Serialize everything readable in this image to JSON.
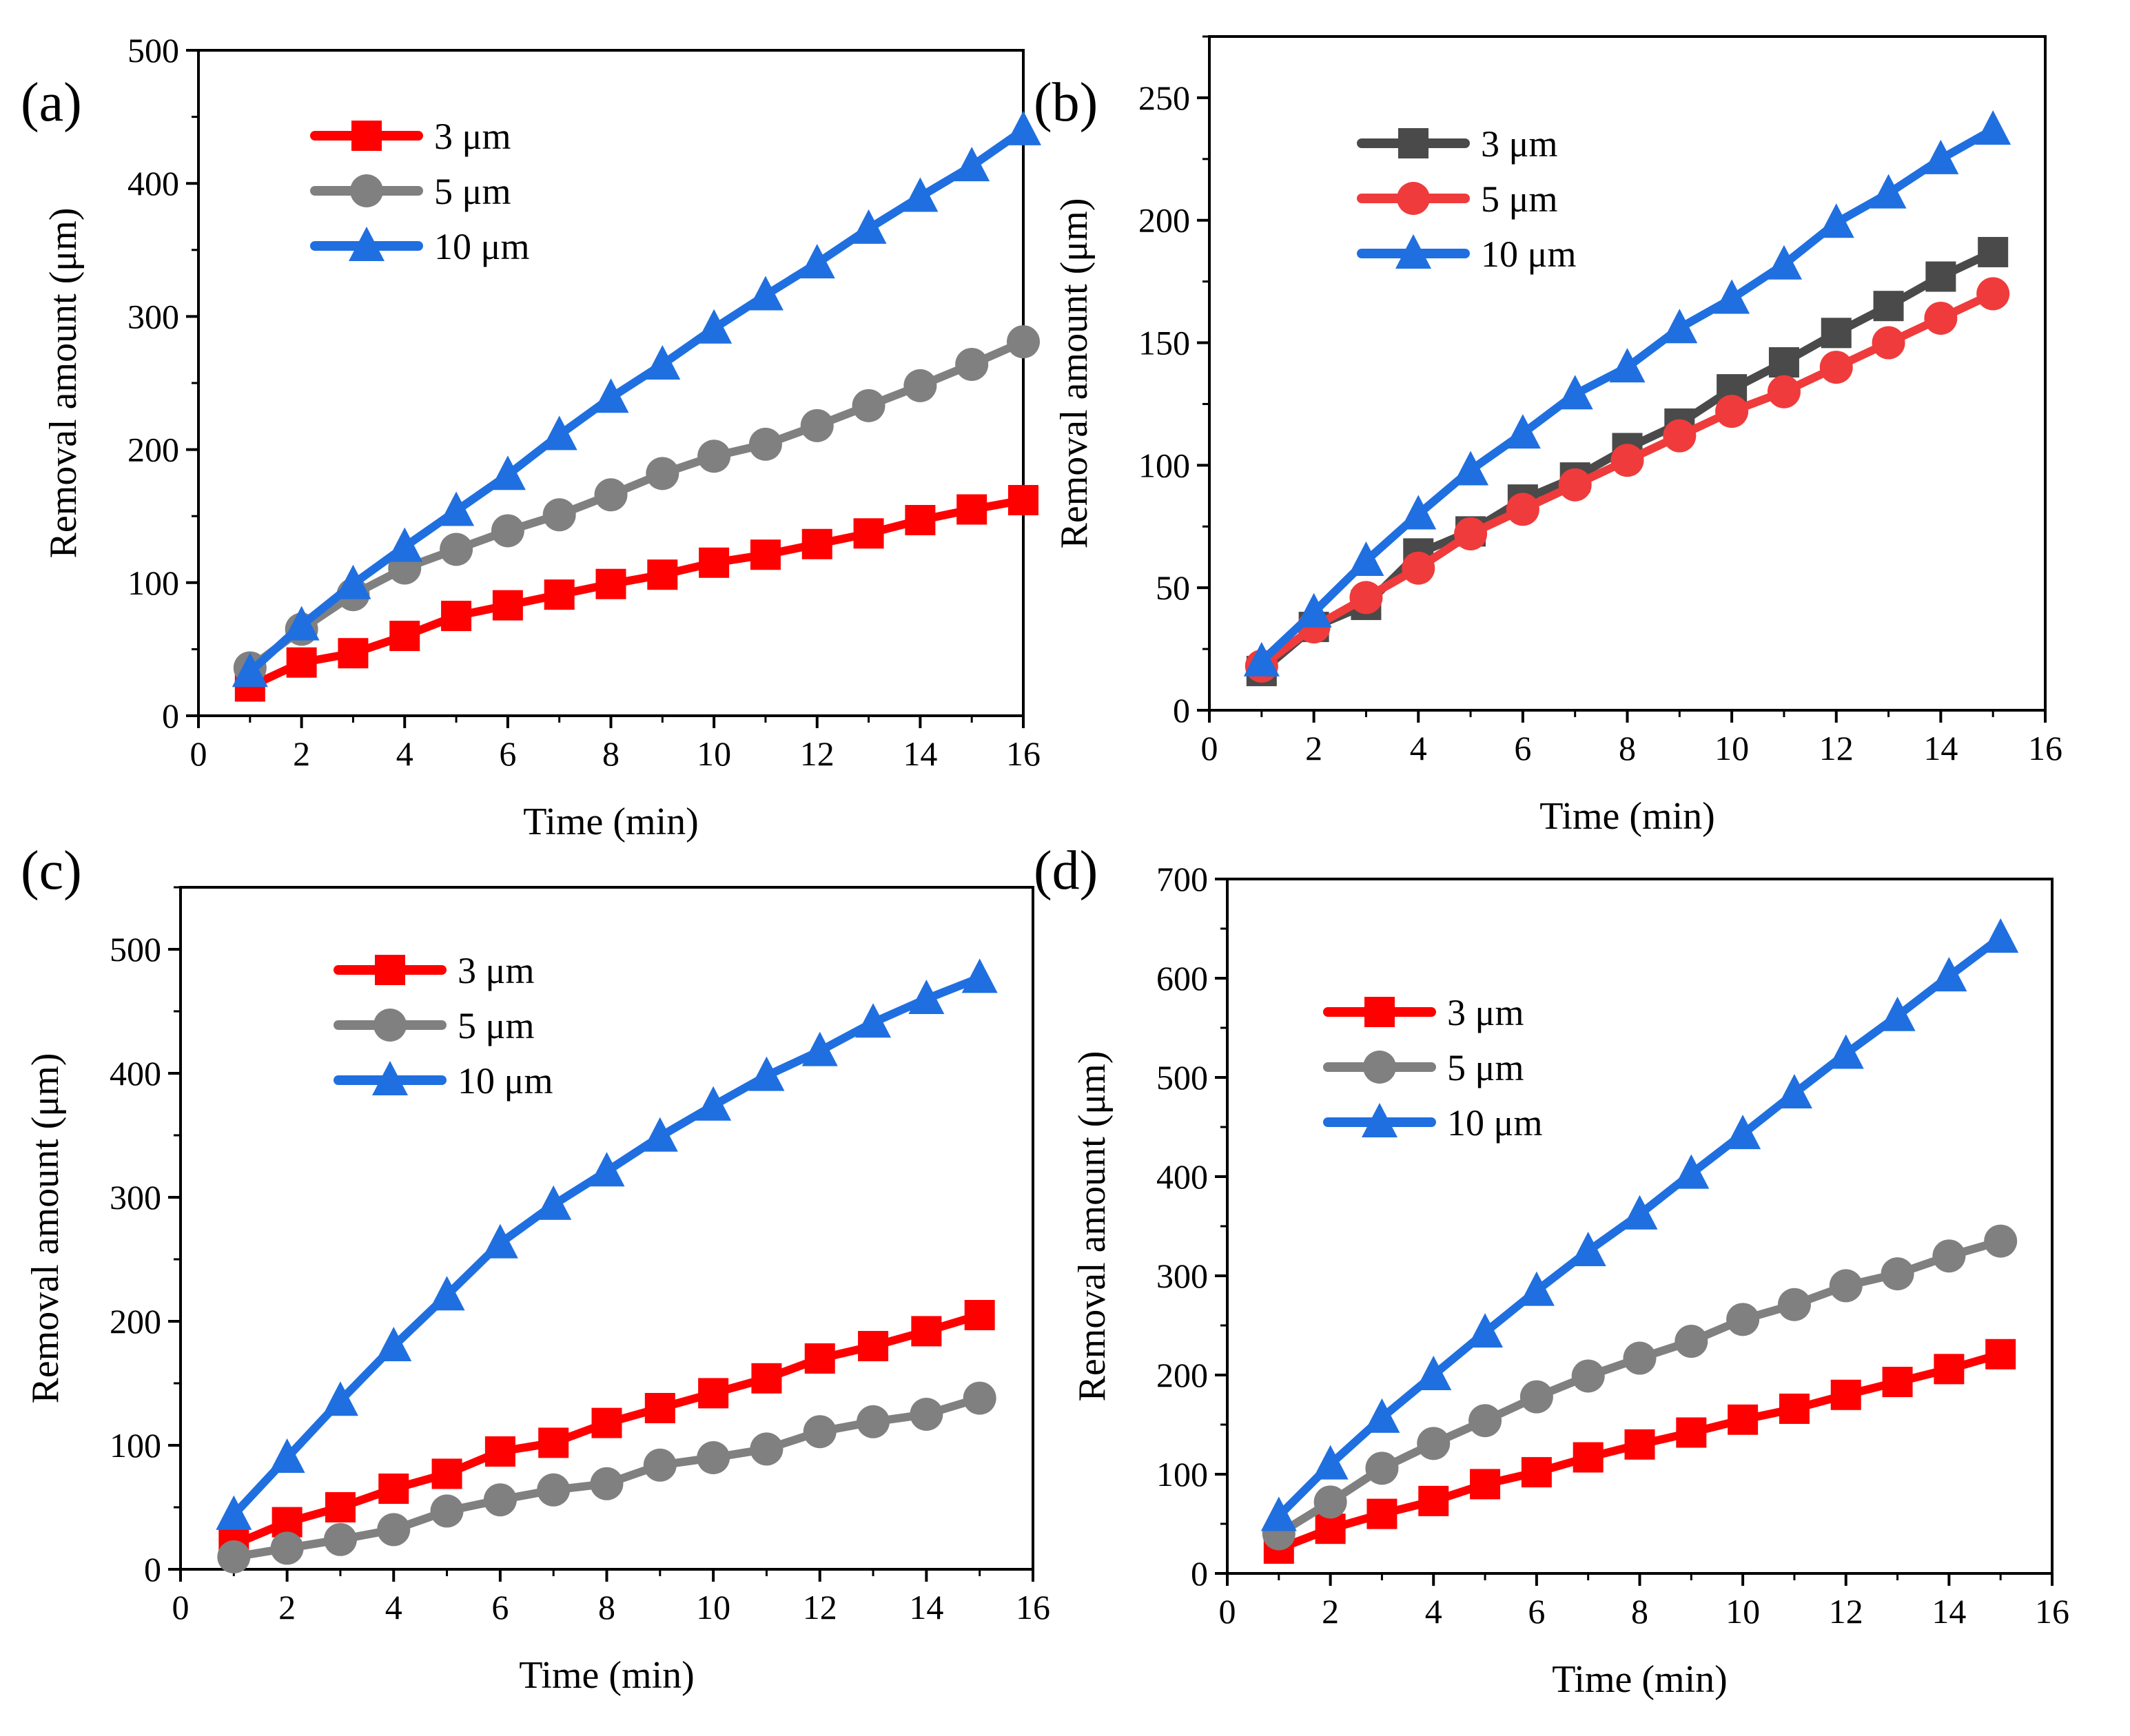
{
  "chart_data": [
    {
      "type": "line",
      "panel_label": "(a)",
      "xlabel": "Time (min)",
      "ylabel": "Removal amount (μm)",
      "xlim": [
        0,
        16
      ],
      "ylim": [
        0,
        500
      ],
      "xticks": [
        0,
        2,
        4,
        6,
        8,
        10,
        12,
        14,
        16
      ],
      "yticks": [
        0,
        100,
        200,
        300,
        400,
        500
      ],
      "legend_position": "top-left",
      "x": [
        1,
        2,
        3,
        4,
        5,
        6,
        7,
        8,
        9,
        10,
        11,
        12,
        13,
        14,
        15,
        16
      ],
      "series": [
        {
          "name": "3 μm",
          "color": "#ff0000",
          "marker": "square",
          "values": [
            22,
            40,
            47,
            60,
            75,
            83,
            91,
            99,
            106,
            115,
            121,
            129,
            137,
            147,
            155,
            162
          ]
        },
        {
          "name": "5 μm",
          "color": "#808080",
          "marker": "circle",
          "values": [
            36,
            65,
            91,
            111,
            125,
            139,
            151,
            166,
            182,
            195,
            204,
            218,
            233,
            248,
            264,
            281
          ]
        },
        {
          "name": "10 μm",
          "color": "#1f6fe0",
          "marker": "triangle",
          "values": [
            33,
            68,
            99,
            127,
            154,
            181,
            211,
            239,
            264,
            291,
            316,
            340,
            366,
            390,
            413,
            440
          ]
        }
      ]
    },
    {
      "type": "line",
      "panel_label": "(b)",
      "xlabel": "Time (min)",
      "ylabel": "Removal amount (μm)",
      "xlim": [
        0,
        16
      ],
      "ylim": [
        0,
        275
      ],
      "xticks": [
        0,
        2,
        4,
        6,
        8,
        10,
        12,
        14,
        16
      ],
      "yticks": [
        0,
        50,
        100,
        150,
        200,
        250
      ],
      "legend_position": "top-left",
      "x": [
        1,
        2,
        3,
        4,
        5,
        6,
        7,
        8,
        9,
        10,
        11,
        12,
        13,
        14,
        15
      ],
      "series": [
        {
          "name": "3 μm",
          "color": "#4a4a4a",
          "marker": "square",
          "values": [
            16,
            34,
            43,
            64,
            73,
            86,
            95,
            107,
            117,
            131,
            142,
            154,
            165,
            177,
            187
          ]
        },
        {
          "name": "5 μm",
          "color": "#ef3b3b",
          "marker": "circle",
          "values": [
            18,
            34,
            46,
            58,
            72,
            82,
            92,
            102,
            112,
            122,
            130,
            140,
            150,
            160,
            170
          ]
        },
        {
          "name": "10 μm",
          "color": "#1f6fe0",
          "marker": "triangle",
          "values": [
            20,
            40,
            61,
            80,
            98,
            113,
            129,
            140,
            156,
            168,
            182,
            199,
            211,
            225,
            237
          ]
        }
      ]
    },
    {
      "type": "line",
      "panel_label": "(c)",
      "xlabel": "Time (min)",
      "ylabel": "Removal amount (μm)",
      "xlim": [
        0,
        16
      ],
      "ylim": [
        0,
        550
      ],
      "xticks": [
        0,
        2,
        4,
        6,
        8,
        10,
        12,
        14,
        16
      ],
      "yticks": [
        0,
        100,
        200,
        300,
        400,
        500
      ],
      "legend_position": "top-left",
      "x": [
        1,
        2,
        3,
        4,
        5,
        6,
        7,
        8,
        9,
        10,
        11,
        12,
        13,
        14,
        15
      ],
      "series": [
        {
          "name": "3 μm",
          "color": "#ff0000",
          "marker": "square",
          "values": [
            20,
            38,
            50,
            65,
            77,
            95,
            102,
            118,
            130,
            142,
            154,
            170,
            180,
            192,
            205
          ]
        },
        {
          "name": "5 μm",
          "color": "#808080",
          "marker": "circle",
          "values": [
            10,
            17,
            24,
            32,
            47,
            56,
            64,
            69,
            84,
            90,
            97,
            111,
            119,
            125,
            138
          ]
        },
        {
          "name": "10 μm",
          "color": "#1f6fe0",
          "marker": "triangle",
          "values": [
            44,
            90,
            136,
            180,
            221,
            263,
            294,
            321,
            349,
            374,
            398,
            418,
            441,
            460,
            477
          ]
        }
      ]
    },
    {
      "type": "line",
      "panel_label": "(d)",
      "xlabel": "Time (min)",
      "ylabel": "Removal amount (μm)",
      "xlim": [
        0,
        16
      ],
      "ylim": [
        0,
        700
      ],
      "xticks": [
        0,
        2,
        4,
        6,
        8,
        10,
        12,
        14,
        16
      ],
      "yticks": [
        0,
        100,
        200,
        300,
        400,
        500,
        600,
        700
      ],
      "legend_position": "top-left",
      "x": [
        1,
        2,
        3,
        4,
        5,
        6,
        7,
        8,
        9,
        10,
        11,
        12,
        13,
        14,
        15
      ],
      "series": [
        {
          "name": "3 μm",
          "color": "#ff0000",
          "marker": "square",
          "values": [
            25,
            45,
            60,
            73,
            90,
            102,
            117,
            130,
            142,
            155,
            166,
            180,
            193,
            206,
            221
          ]
        },
        {
          "name": "5 μm",
          "color": "#808080",
          "marker": "circle",
          "values": [
            40,
            72,
            106,
            131,
            154,
            178,
            199,
            217,
            234,
            256,
            271,
            290,
            302,
            320,
            335
          ]
        },
        {
          "name": "10 μm",
          "color": "#1f6fe0",
          "marker": "triangle",
          "values": [
            58,
            110,
            157,
            200,
            243,
            285,
            325,
            362,
            403,
            443,
            484,
            524,
            562,
            602,
            641
          ]
        }
      ]
    }
  ]
}
